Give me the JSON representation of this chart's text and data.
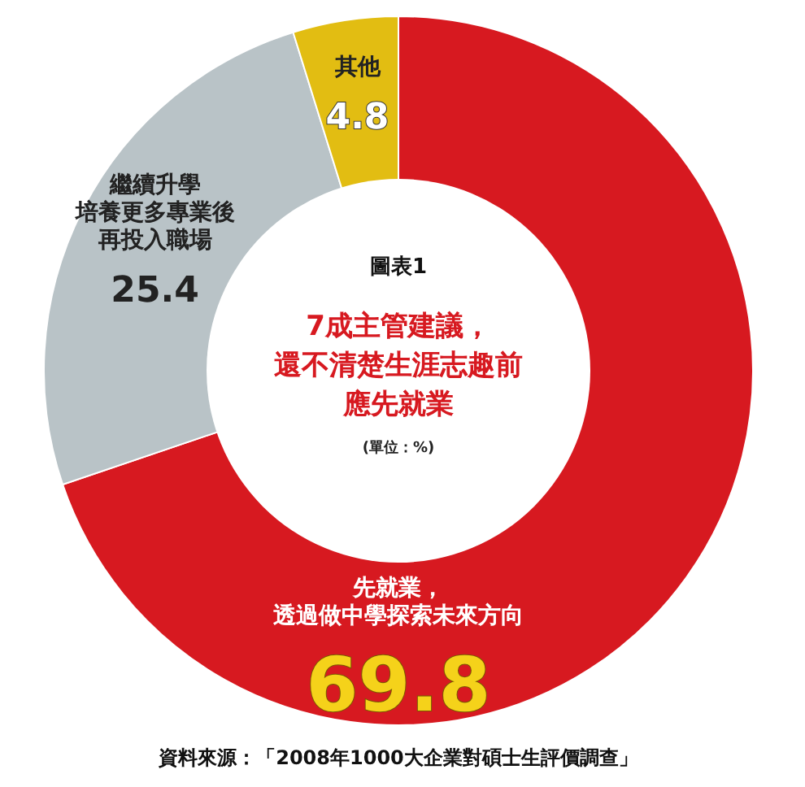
{
  "chart_data": {
    "type": "donut",
    "title": "圖表1",
    "subtitle": "7成主管建議，還不清楚生涯志趣前應先就業",
    "categories": [
      "先就業，透過做中學探索未來方向",
      "繼續升學培養更多專業後再投入職場",
      "其他"
    ],
    "values": [
      69.8,
      25.4,
      4.8
    ],
    "colors": [
      "#d71920",
      "#b9c3c7",
      "#e2bd12"
    ],
    "data_labels": true,
    "annotations": [
      "(單位：%)",
      "資料來源：「2008年1000大企業對碩士生評價調查」"
    ]
  }
}
